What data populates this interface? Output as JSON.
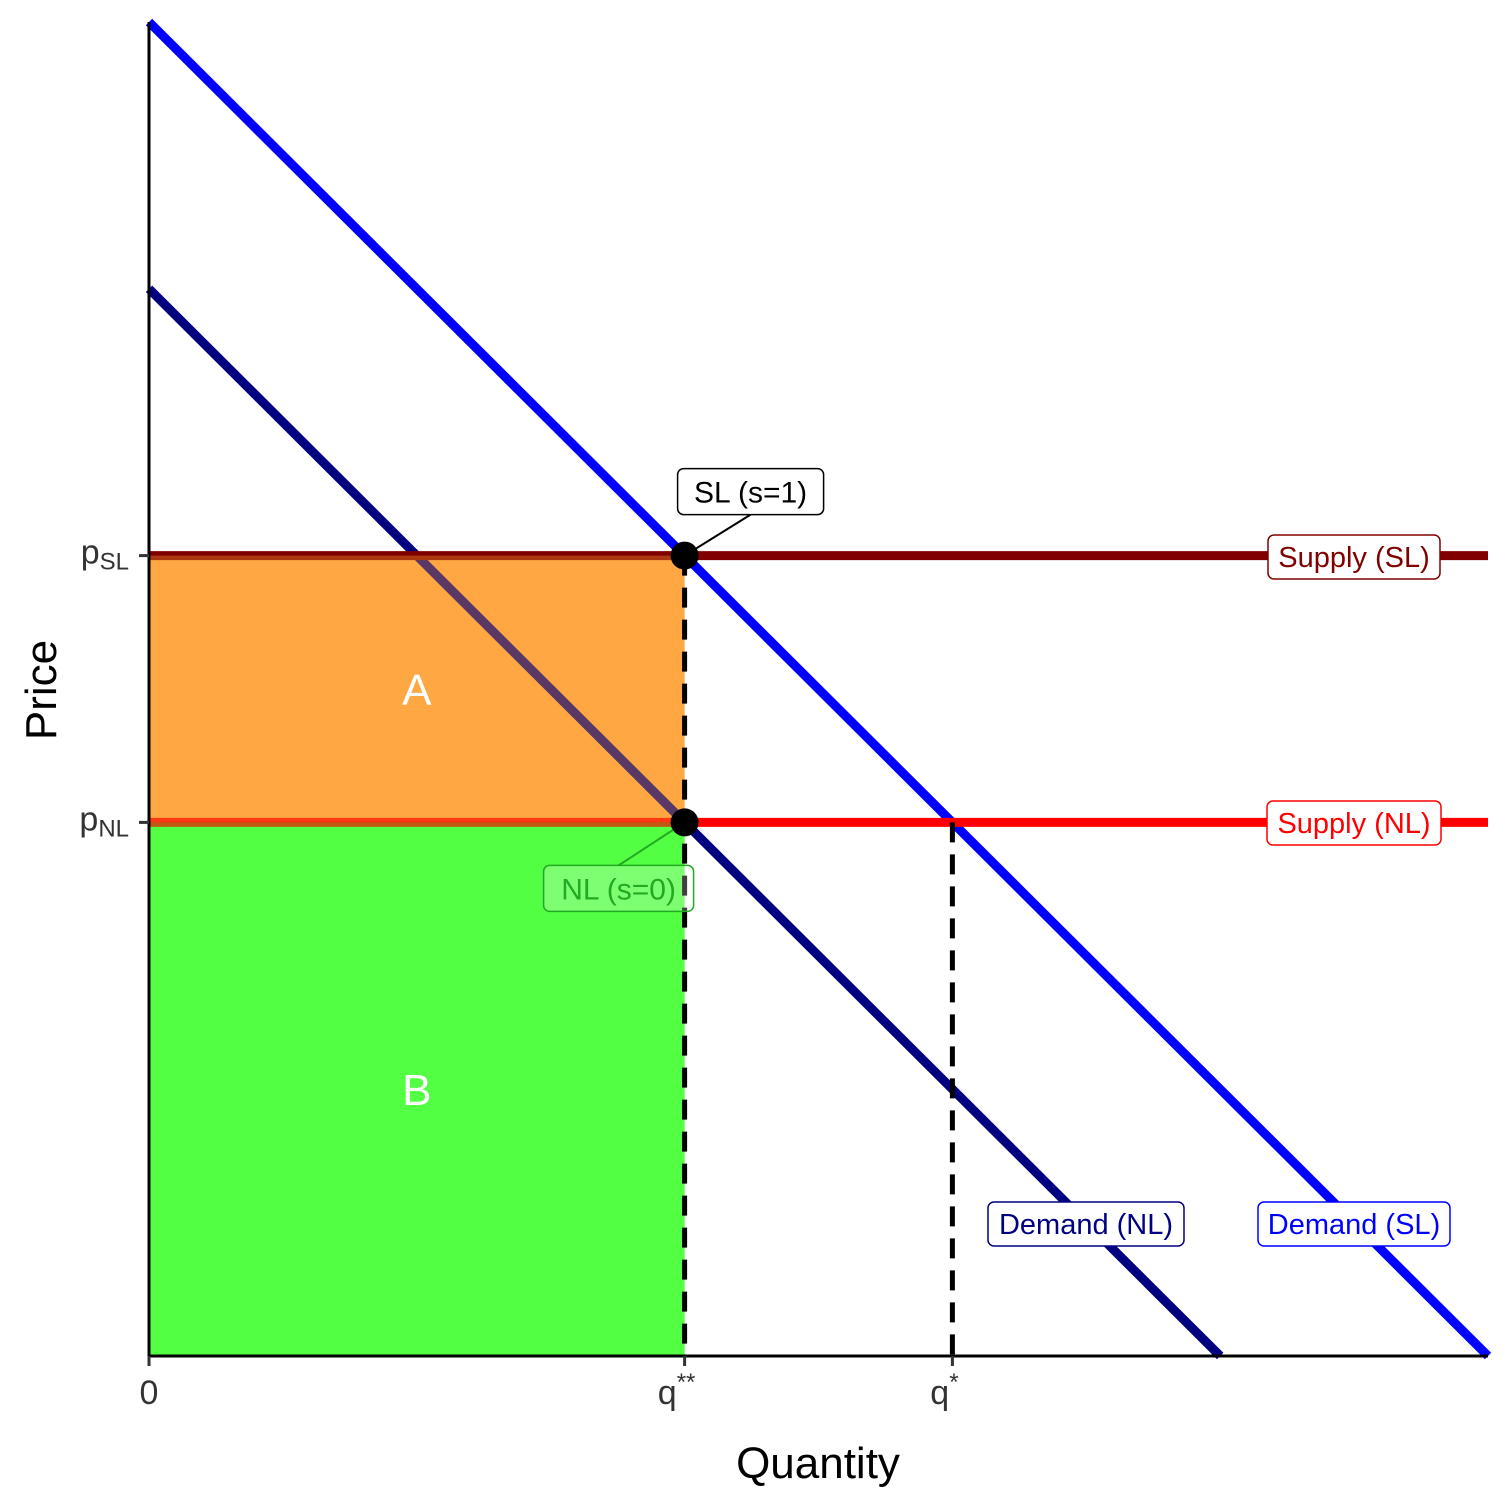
{
  "chart_data": {
    "type": "line",
    "xlabel": "Quantity",
    "ylabel": "Price",
    "xlim": [
      0,
      10
    ],
    "ylim": [
      0,
      10
    ],
    "x_ticks": [
      {
        "value": 0,
        "base": "0",
        "sup": ""
      },
      {
        "value": 4,
        "base": "q",
        "sup": "**"
      },
      {
        "value": 6,
        "base": "q",
        "sup": "*"
      }
    ],
    "y_ticks": [
      {
        "value": 6,
        "base": "p",
        "sub": "SL"
      },
      {
        "value": 4,
        "base": "p",
        "sub": "NL"
      }
    ],
    "series": [
      {
        "name": "Demand (SL)",
        "color": "#0000FF",
        "x": [
          0,
          10
        ],
        "y": [
          10,
          0
        ]
      },
      {
        "name": "Demand (NL)",
        "color": "#000080",
        "x": [
          0,
          8
        ],
        "y": [
          8,
          0
        ]
      },
      {
        "name": "Supply (SL)",
        "color": "#800000",
        "x": [
          0,
          10
        ],
        "y": [
          6,
          6
        ]
      },
      {
        "name": "Supply (NL)",
        "color": "#FF0000",
        "x": [
          0,
          10
        ],
        "y": [
          4,
          4
        ]
      }
    ],
    "regions": [
      {
        "label": "A",
        "color": "#FFA033",
        "x": [
          0,
          4
        ],
        "y": [
          4,
          6
        ]
      },
      {
        "label": "B",
        "color": "#44FF33",
        "x": [
          0,
          4
        ],
        "y": [
          0,
          4
        ]
      }
    ],
    "points": [
      {
        "label": "SL (s=1)",
        "x": 4,
        "y": 6,
        "label_color": "#000000"
      },
      {
        "label": "NL (s=0)",
        "x": 4,
        "y": 4,
        "label_color": "#22AA22"
      }
    ],
    "reference_lines": [
      {
        "x": 4,
        "y_top": 6
      },
      {
        "x": 6,
        "y_top": 4
      }
    ],
    "grid": false,
    "legend": "none"
  }
}
